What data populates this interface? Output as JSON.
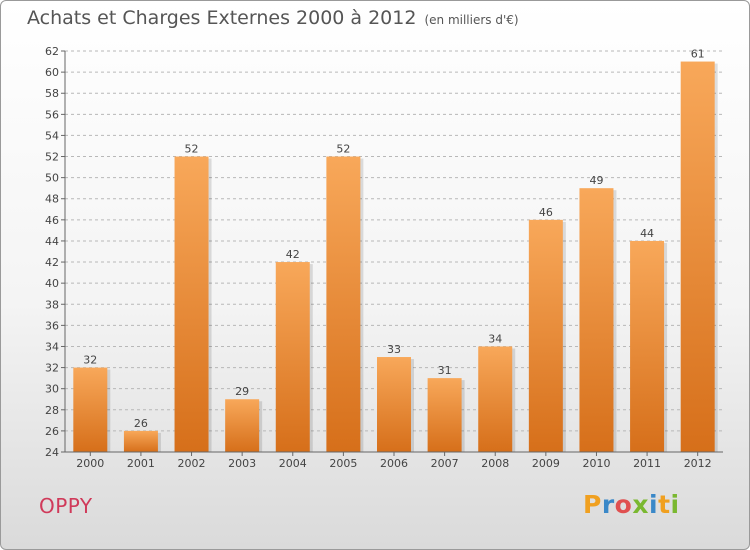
{
  "header": {
    "title": "Achats et Charges Externes 2000 à 2012",
    "unit_note": "(en milliers d'€)"
  },
  "footer": {
    "location": "OPPY",
    "brand_letters": [
      "P",
      "r",
      "o",
      "x",
      "i",
      "t",
      "i"
    ],
    "brand_colors": [
      "#f0a020",
      "#3a88c8",
      "#e05050",
      "#7ab830",
      "#3a88c8",
      "#f0a020",
      "#7ab830"
    ]
  },
  "colors": {
    "bar_top": "#f8a85a",
    "bar_bottom": "#d66f1a",
    "grid": "#b8b8b8",
    "text": "#444444"
  },
  "chart_data": {
    "type": "bar",
    "categories": [
      "2000",
      "2001",
      "2002",
      "2003",
      "2004",
      "2005",
      "2006",
      "2007",
      "2008",
      "2009",
      "2010",
      "2011",
      "2012"
    ],
    "values": [
      32,
      26,
      52,
      29,
      42,
      52,
      33,
      31,
      34,
      46,
      49,
      44,
      61
    ],
    "ylim": [
      24,
      62
    ],
    "yticks": [
      24,
      26,
      28,
      30,
      32,
      34,
      36,
      38,
      40,
      42,
      44,
      46,
      48,
      50,
      52,
      54,
      56,
      58,
      60,
      62
    ],
    "grid": "horizontal dashed",
    "data_labels": true
  }
}
